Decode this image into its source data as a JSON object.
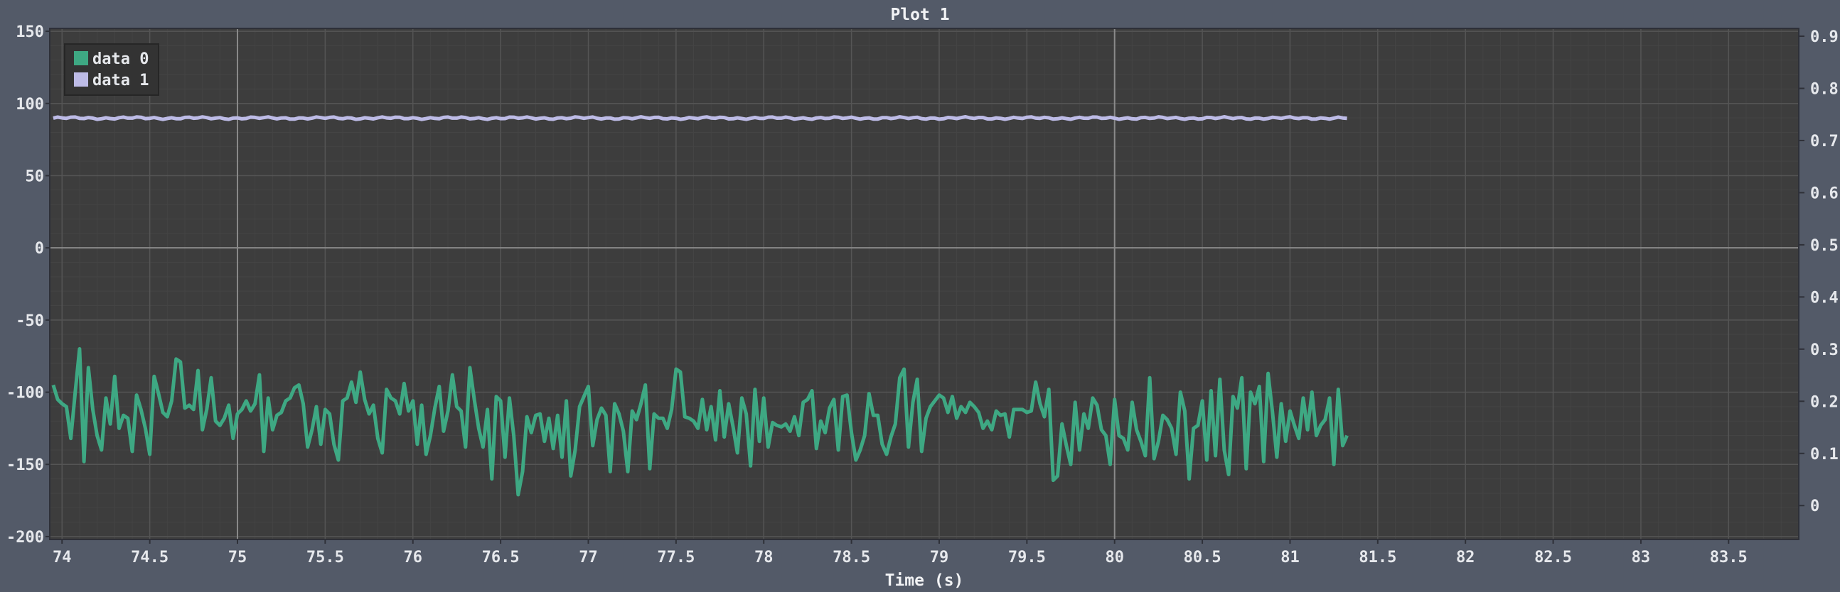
{
  "chart_data": {
    "type": "line",
    "title": "Plot 1",
    "xlabel": "Time (s)",
    "ylabel": "",
    "xlim": [
      73.93,
      83.9
    ],
    "ylim": [
      -202,
      152
    ],
    "y2lim": [
      -0.065,
      0.915
    ],
    "x_ticks": [
      "74",
      "74.5",
      "75",
      "75.5",
      "76",
      "76.5",
      "77",
      "77.5",
      "78",
      "78.5",
      "79",
      "79.5",
      "80",
      "80.5",
      "81",
      "81.5",
      "82",
      "82.5",
      "83",
      "83.5"
    ],
    "x_tick_values": [
      74,
      74.5,
      75,
      75.5,
      76,
      76.5,
      77,
      77.5,
      78,
      78.5,
      79,
      79.5,
      80,
      80.5,
      81,
      81.5,
      82,
      82.5,
      83,
      83.5
    ],
    "y_ticks": [
      "150",
      "100",
      "50",
      "0",
      "-50",
      "-100",
      "-150",
      "-200"
    ],
    "y_tick_values": [
      150,
      100,
      50,
      0,
      -50,
      -100,
      -150,
      -200
    ],
    "y2_ticks": [
      "0.9",
      "0.8",
      "0.7",
      "0.6",
      "0.5",
      "0.4",
      "0.3",
      "0.2",
      "0.1",
      "0"
    ],
    "y2_tick_values": [
      0.9,
      0.8,
      0.7,
      0.6,
      0.5,
      0.4,
      0.3,
      0.2,
      0.1,
      0
    ],
    "major_gridlines_x": [
      75,
      80
    ],
    "major_gridlines_y": [
      0
    ],
    "grid": true,
    "legend_position": "top-left",
    "series": [
      {
        "name": "data 0",
        "color": "#3ea883",
        "x_start": 73.95,
        "x_step": 0.025,
        "values": [
          -95,
          -105,
          -108,
          -110,
          -132,
          -100,
          -70,
          -148,
          -83,
          -112,
          -130,
          -140,
          -104,
          -122,
          -89,
          -125,
          -116,
          -118,
          -141,
          -102,
          -112,
          -125,
          -143,
          -89,
          -101,
          -114,
          -117,
          -106,
          -77,
          -79,
          -111,
          -109,
          -112,
          -85,
          -126,
          -112,
          -90,
          -120,
          -123,
          -118,
          -109,
          -132,
          -115,
          -112,
          -106,
          -113,
          -108,
          -88,
          -141,
          -104,
          -126,
          -116,
          -114,
          -106,
          -104,
          -97,
          -95,
          -108,
          -138,
          -126,
          -110,
          -136,
          -112,
          -115,
          -136,
          -147,
          -106,
          -104,
          -93,
          -107,
          -86,
          -105,
          -115,
          -109,
          -132,
          -142,
          -98,
          -104,
          -106,
          -115,
          -94,
          -113,
          -106,
          -136,
          -109,
          -143,
          -130,
          -111,
          -96,
          -127,
          -113,
          -88,
          -110,
          -113,
          -138,
          -83,
          -105,
          -125,
          -138,
          -112,
          -160,
          -103,
          -106,
          -145,
          -104,
          -130,
          -171,
          -155,
          -117,
          -128,
          -116,
          -115,
          -134,
          -118,
          -139,
          -116,
          -145,
          -106,
          -158,
          -140,
          -110,
          -103,
          -96,
          -137,
          -119,
          -111,
          -116,
          -155,
          -108,
          -115,
          -127,
          -155,
          -113,
          -119,
          -108,
          -95,
          -153,
          -115,
          -118,
          -118,
          -125,
          -112,
          -84,
          -86,
          -117,
          -118,
          -120,
          -125,
          -105,
          -126,
          -110,
          -133,
          -99,
          -131,
          -108,
          -124,
          -142,
          -104,
          -115,
          -151,
          -98,
          -134,
          -104,
          -138,
          -121,
          -123,
          -124,
          -122,
          -127,
          -117,
          -130,
          -107,
          -105,
          -99,
          -139,
          -120,
          -128,
          -111,
          -105,
          -140,
          -103,
          -102,
          -128,
          -147,
          -140,
          -130,
          -101,
          -116,
          -116,
          -136,
          -143,
          -131,
          -122,
          -90,
          -84,
          -138,
          -107,
          -91,
          -141,
          -118,
          -110,
          -106,
          -102,
          -104,
          -114,
          -103,
          -118,
          -110,
          -114,
          -107,
          -110,
          -114,
          -125,
          -120,
          -126,
          -113,
          -116,
          -115,
          -131,
          -112,
          -112,
          -112,
          -114,
          -113,
          -93,
          -108,
          -117,
          -98,
          -161,
          -158,
          -122,
          -137,
          -150,
          -107,
          -140,
          -115,
          -125,
          -104,
          -109,
          -126,
          -130,
          -150,
          -105,
          -130,
          -132,
          -140,
          -107,
          -126,
          -134,
          -144,
          -90,
          -146,
          -134,
          -116,
          -119,
          -125,
          -143,
          -100,
          -113,
          -160,
          -125,
          -123,
          -106,
          -147,
          -99,
          -144,
          -91,
          -140,
          -157,
          -103,
          -111,
          -90,
          -153,
          -100,
          -108,
          -96,
          -148,
          -87,
          -114,
          -145,
          -108,
          -134,
          -113,
          -123,
          -132,
          -104,
          -126,
          -100,
          -130,
          -123,
          -119,
          -104,
          -150,
          -98,
          -137,
          -130
        ]
      },
      {
        "name": "data 1",
        "color": "#bdbbe6",
        "axis": "right",
        "x_start": 73.95,
        "x_step": 0.025,
        "value": 0.743
      }
    ]
  }
}
